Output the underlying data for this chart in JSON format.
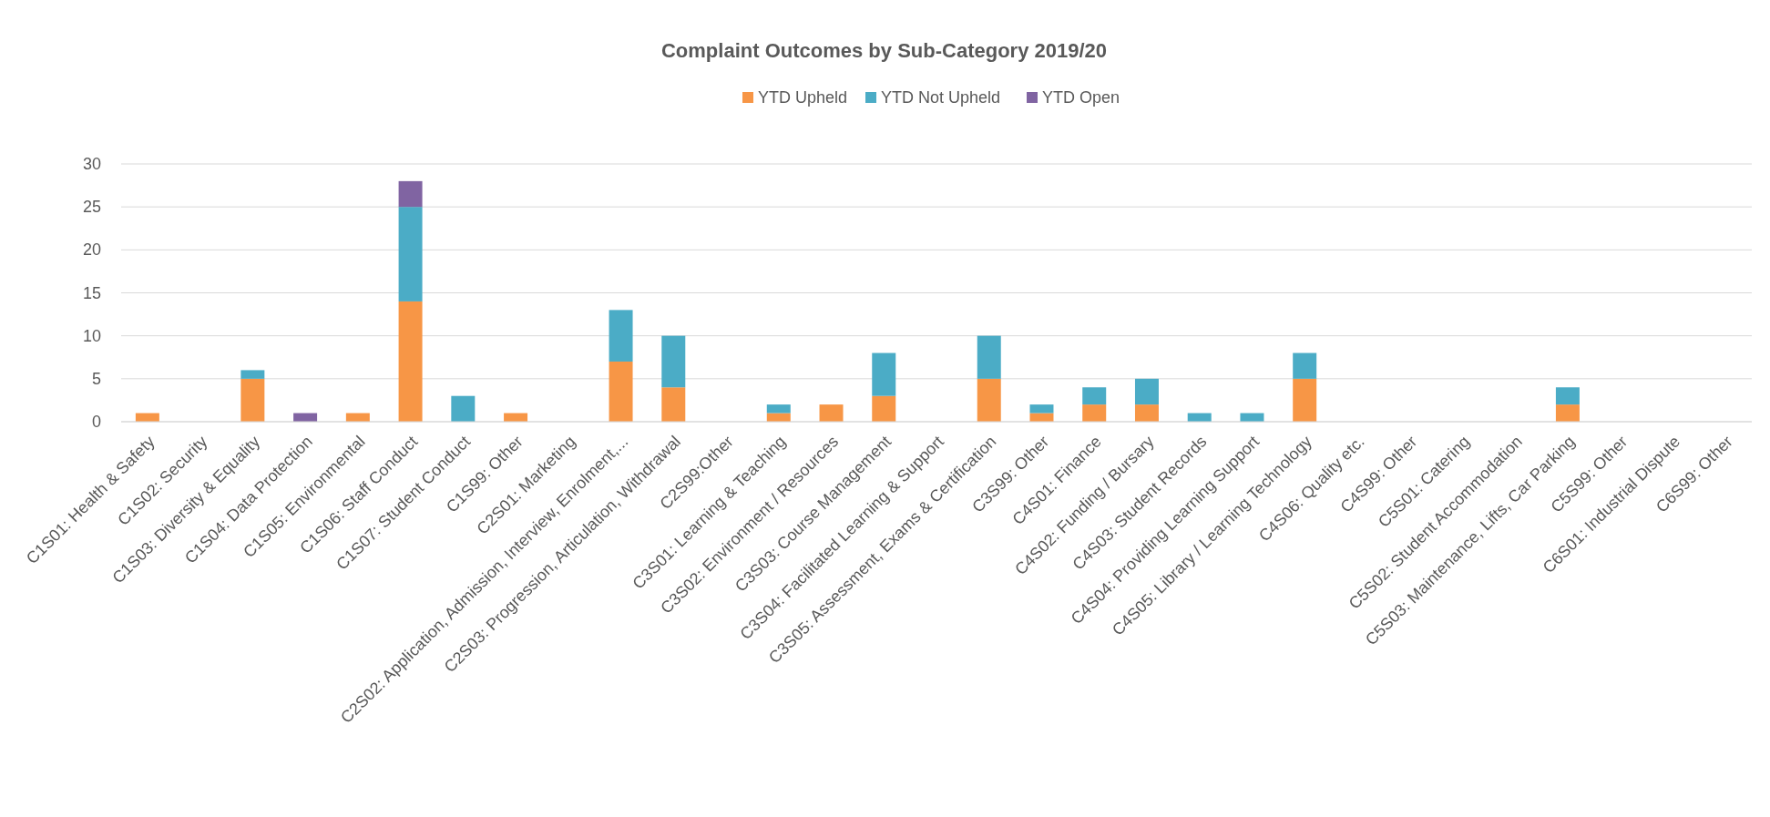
{
  "chart_data": {
    "type": "bar",
    "title": "Complaint Outcomes by Sub-Category 2019/20",
    "stacked": true,
    "legend": "top",
    "grid": "y",
    "ylim": [
      0,
      30
    ],
    "yticks": [
      0,
      5,
      10,
      15,
      20,
      25,
      30
    ],
    "categories": [
      "C1S01: Health & Safety",
      "C1S02: Security",
      "C1S03: Diversity & Equality",
      "C1S04: Data Protection",
      "C1S05: Environmental",
      "C1S06: Staff Conduct",
      "C1S07: Student Conduct",
      "C1S99: Other",
      "C2S01: Marketing",
      "C2S02: Application, Admission, Interview, Enrolment,...",
      "C2S03: Progression, Articulation, Withdrawal",
      "C2S99:Other",
      "C3S01: Learning & Teaching",
      "C3S02: Environment / Resources",
      "C3S03: Course Management",
      "C3S04: Facilitated Learning & Support",
      "C3S05: Assessment, Exams & Certification",
      "C3S99: Other",
      "C4S01: Finance",
      "C4S02: Funding / Bursary",
      "C4S03: Student Records",
      "C4S04: Providing Learning Support",
      "C4S05: Library / Learning Technology",
      "C4S06: Quality etc.",
      "C4S99: Other",
      "C5S01: Catering",
      "C5S02: Student Accommodation",
      "C5S03: Maintenance, Lifts, Car Parking",
      "C5S99: Other",
      "C6S01: Industrial Dispute",
      "C6S99: Other"
    ],
    "series": [
      {
        "name": "YTD Upheld",
        "color": "#f79646",
        "values": [
          1,
          0,
          5,
          0,
          1,
          14,
          0,
          1,
          0,
          7,
          4,
          0,
          1,
          2,
          3,
          0,
          5,
          1,
          2,
          2,
          0,
          0,
          5,
          0,
          0,
          0,
          0,
          2,
          0,
          0,
          0
        ]
      },
      {
        "name": "YTD Not Upheld",
        "color": "#4bacc6",
        "values": [
          0,
          0,
          1,
          0,
          0,
          11,
          3,
          0,
          0,
          6,
          6,
          0,
          1,
          0,
          5,
          0,
          5,
          1,
          2,
          3,
          1,
          1,
          3,
          0,
          0,
          0,
          0,
          2,
          0,
          0,
          0
        ]
      },
      {
        "name": "YTD Open",
        "color": "#8064a2",
        "values": [
          0,
          0,
          0,
          1,
          0,
          3,
          0,
          0,
          0,
          0,
          0,
          0,
          0,
          0,
          0,
          0,
          0,
          0,
          0,
          0,
          0,
          0,
          0,
          0,
          0,
          0,
          0,
          0,
          0,
          0,
          0
        ]
      }
    ]
  }
}
